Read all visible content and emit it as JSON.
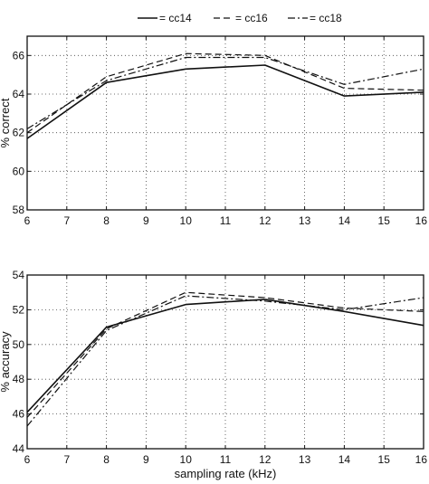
{
  "legend": [
    {
      "label": "= cc14",
      "dash": "solid"
    },
    {
      "label": "= cc16",
      "dash": "dashed"
    },
    {
      "label": "= cc18",
      "dash": "dashdot"
    }
  ],
  "chart_data": [
    {
      "type": "line",
      "xlabel": "",
      "ylabel": "% correct",
      "xlim": [
        6,
        16
      ],
      "ylim": [
        58,
        67
      ],
      "xticks": [
        6,
        7,
        8,
        9,
        10,
        11,
        12,
        13,
        14,
        15,
        16
      ],
      "yticks": [
        58,
        60,
        62,
        64,
        66
      ],
      "grid": true,
      "x": [
        6,
        8,
        10,
        12,
        14,
        16
      ],
      "series": [
        {
          "name": "cc14",
          "dash": "solid",
          "values": [
            61.7,
            64.6,
            65.3,
            65.5,
            63.9,
            64.1
          ]
        },
        {
          "name": "cc16",
          "dash": "dashed",
          "values": [
            62.0,
            64.9,
            66.1,
            66.0,
            64.3,
            64.2
          ]
        },
        {
          "name": "cc18",
          "dash": "dashdot",
          "values": [
            62.2,
            64.7,
            65.9,
            65.9,
            64.5,
            65.3
          ]
        }
      ]
    },
    {
      "type": "line",
      "xlabel": "sampling rate (kHz)",
      "ylabel": "% accuracy",
      "xlim": [
        6,
        16
      ],
      "ylim": [
        44,
        54
      ],
      "xticks": [
        6,
        7,
        8,
        9,
        10,
        11,
        12,
        13,
        14,
        15,
        16
      ],
      "yticks": [
        44,
        46,
        48,
        50,
        52,
        54
      ],
      "grid": true,
      "x": [
        6,
        8,
        10,
        12,
        14,
        16
      ],
      "series": [
        {
          "name": "cc14",
          "dash": "solid",
          "values": [
            46.1,
            51.0,
            52.3,
            52.6,
            51.9,
            51.1
          ]
        },
        {
          "name": "cc16",
          "dash": "dashed",
          "values": [
            45.8,
            50.9,
            53.0,
            52.7,
            52.1,
            51.9
          ]
        },
        {
          "name": "cc18",
          "dash": "dashdot",
          "values": [
            45.3,
            50.8,
            52.8,
            52.5,
            52.0,
            52.7
          ]
        }
      ]
    }
  ]
}
